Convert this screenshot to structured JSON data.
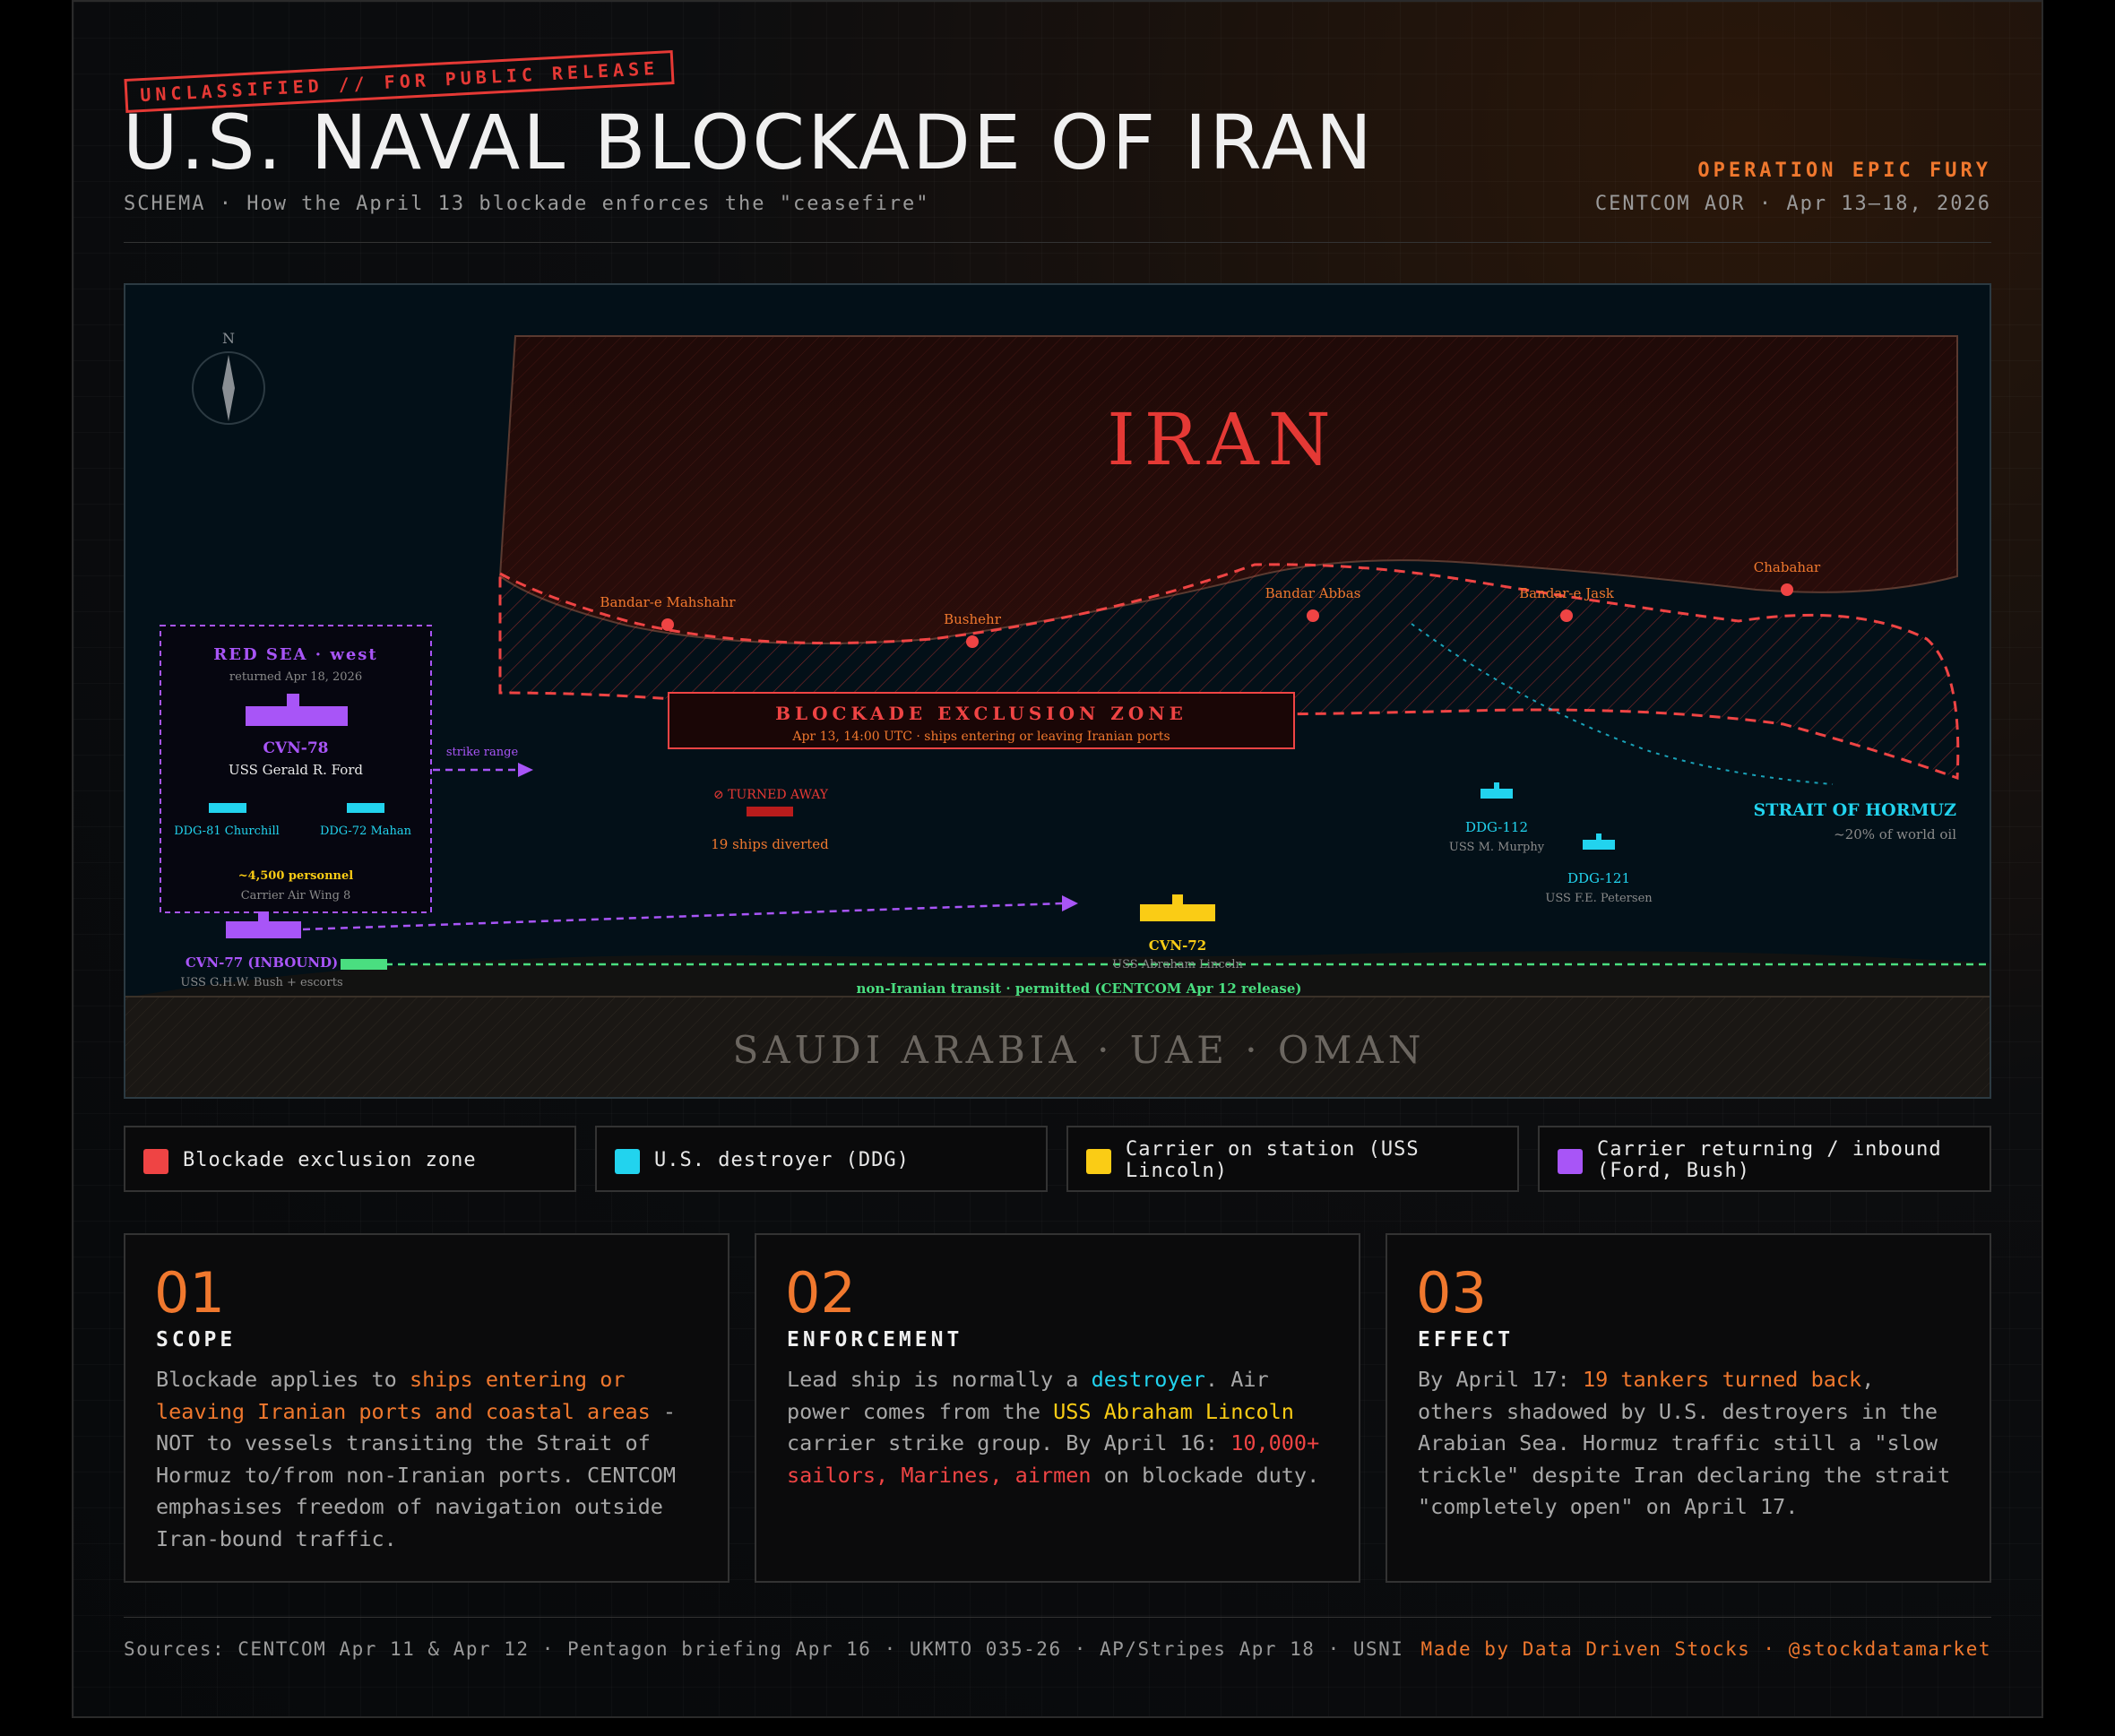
{
  "header": {
    "stamp": "UNCLASSIFIED // FOR PUBLIC RELEASE",
    "title": "U.S. NAVAL BLOCKADE OF IRAN",
    "subtitle": "SCHEMA · How the April 13 blockade enforces the \"ceasefire\"",
    "operation": "OPERATION EPIC FURY",
    "aor": "CENTCOM AOR · Apr 13–18, 2026"
  },
  "map": {
    "compass": "N",
    "iran_label": "IRAN",
    "ports": [
      {
        "name": "Bandar-e Mahshahr"
      },
      {
        "name": "Bushehr"
      },
      {
        "name": "Bandar Abbas"
      },
      {
        "name": "Bandar-e Jask"
      },
      {
        "name": "Chabahar"
      }
    ],
    "zone_box": {
      "title": "BLOCKADE EXCLUSION ZONE",
      "detail": "Apr 13, 14:00 UTC · ships entering or leaving Iranian ports"
    },
    "red_sea": {
      "title": "RED SEA · west",
      "date": "returned Apr 18, 2026",
      "carrier_id": "CVN-78",
      "carrier_name": "USS Gerald R. Ford",
      "escort1": "DDG-81 Churchill",
      "escort2": "DDG-72 Mahan",
      "personnel": "~4,500 personnel",
      "wing": "Carrier Air Wing 8",
      "strike_range": "strike range"
    },
    "turned_away": "⊘ TURNED AWAY",
    "diverted": "19 ships diverted",
    "ddg112": {
      "id": "DDG-112",
      "name": "USS M. Murphy"
    },
    "ddg121": {
      "id": "DDG-121",
      "name": "USS F.E. Petersen"
    },
    "strait": {
      "name": "STRAIT OF HORMUZ",
      "note": "~20% of world oil"
    },
    "cvn72": {
      "id": "CVN-72",
      "name": "USS Abraham Lincoln"
    },
    "cvn77": {
      "id": "CVN-77 (INBOUND)",
      "name": "USS G.H.W. Bush + escorts"
    },
    "transit": "non-Iranian transit · permitted (CENTCOM Apr 12 release)",
    "south_label": "SAUDI ARABIA · UAE · OMAN"
  },
  "legend": [
    {
      "label": "Blockade exclusion zone",
      "color": "#ef4444"
    },
    {
      "label": "U.S. destroyer (DDG)",
      "color": "#22d3ee"
    },
    {
      "label": "Carrier on station (USS Lincoln)",
      "color": "#facc15"
    },
    {
      "label": "Carrier returning / inbound (Ford, Bush)",
      "color": "#a855f7"
    }
  ],
  "cards": [
    {
      "num": "01",
      "head": "SCOPE",
      "p1": "Blockade applies to ",
      "h1": "ships entering or leaving Iranian ports and coastal areas",
      "p2": " - NOT to vessels transiting the Strait of Hormuz to/from non-Iranian ports. CENTCOM emphasises freedom of navigation outside Iran-bound traffic."
    },
    {
      "num": "02",
      "head": "ENFORCEMENT",
      "p1": "Lead ship is normally a ",
      "h1": "destroyer",
      "p2": ". Air power comes from the ",
      "h2": "USS Abraham Lincoln",
      "p3": " carrier strike group. By April 16: ",
      "h3": "10,000+ sailors, Marines, airmen",
      "p4": " on blockade duty."
    },
    {
      "num": "03",
      "head": "EFFECT",
      "p1": "By April 17: ",
      "h1": "19 tankers turned back",
      "p2": ", others shadowed by U.S. destroyers in the Arabian Sea. Hormuz traffic still a \"slow trickle\" despite Iran declaring the strait \"completely open\" on April 17."
    }
  ],
  "footer": {
    "sources": "Sources: CENTCOM Apr 11 & Apr 12 · Pentagon briefing Apr 16 · UKMTO 035-26 · AP/Stripes Apr 18 · USNI",
    "credit": "Made by Data Driven Stocks · @stockdatamarket"
  },
  "colors": {
    "red": "#ef4444",
    "cyan": "#22d3ee",
    "yellow": "#facc15",
    "purple": "#a855f7",
    "orange": "#f0782e",
    "green": "#4ade80"
  }
}
